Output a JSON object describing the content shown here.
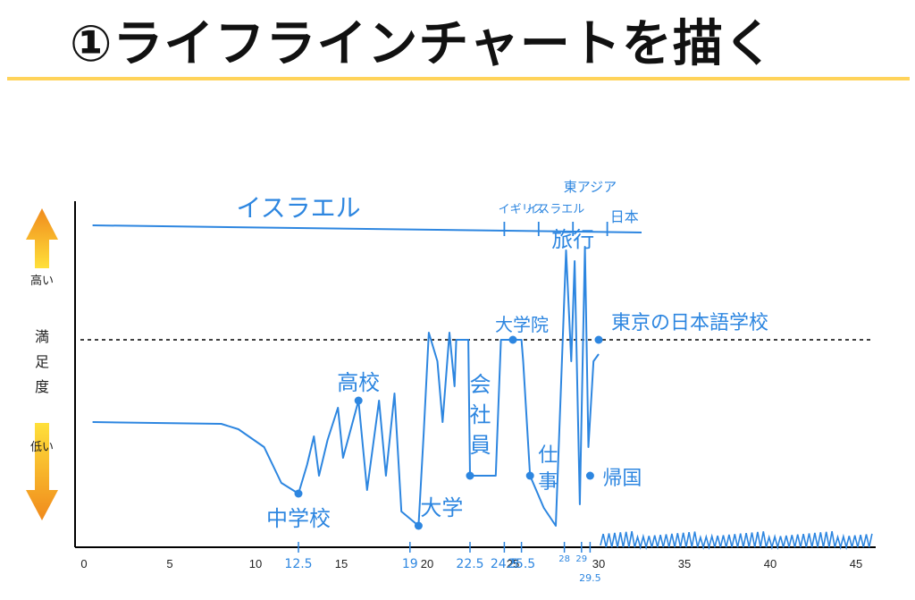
{
  "title": "①ライフラインチャートを描く",
  "colors": {
    "accent_line": "#ffd35a",
    "hand_blue": "#2d86e0",
    "arrow_orange": "#f08a1c",
    "arrow_yellow": "#ffe03a"
  },
  "chart_data": {
    "type": "line",
    "xlim": [
      0,
      45
    ],
    "x_ticks": [
      0,
      5,
      10,
      15,
      20,
      25,
      30,
      35,
      40,
      45
    ],
    "x_ticks_hand": [
      "12.5",
      "19",
      "22.5",
      "24.5",
      "25.5",
      "28",
      "29",
      "29.5"
    ],
    "y_labels": {
      "high": "高い",
      "mid": "満足度",
      "low": "低い"
    },
    "reference_level": 0.58,
    "series": [
      {
        "values": [
          {
            "x": 0.5,
            "y": 0.35
          },
          {
            "x": 8,
            "y": 0.345
          },
          {
            "x": 9,
            "y": 0.33
          },
          {
            "x": 10.5,
            "y": 0.28
          },
          {
            "x": 11.5,
            "y": 0.18
          },
          {
            "x": 12.5,
            "y": 0.15
          },
          {
            "x": 13,
            "y": 0.23
          },
          {
            "x": 13.4,
            "y": 0.31
          },
          {
            "x": 13.7,
            "y": 0.2
          },
          {
            "x": 14.2,
            "y": 0.3
          },
          {
            "x": 14.8,
            "y": 0.39
          },
          {
            "x": 15.1,
            "y": 0.25
          },
          {
            "x": 16,
            "y": 0.41
          },
          {
            "x": 16.5,
            "y": 0.16
          },
          {
            "x": 17.2,
            "y": 0.41
          },
          {
            "x": 17.6,
            "y": 0.2
          },
          {
            "x": 18.1,
            "y": 0.43
          },
          {
            "x": 18.5,
            "y": 0.1
          },
          {
            "x": 19,
            "y": 0.08
          },
          {
            "x": 19.5,
            "y": 0.06
          },
          {
            "x": 19.8,
            "y": 0.32
          },
          {
            "x": 20.1,
            "y": 0.6
          },
          {
            "x": 20.6,
            "y": 0.52
          },
          {
            "x": 20.9,
            "y": 0.35
          },
          {
            "x": 21.3,
            "y": 0.6
          },
          {
            "x": 21.6,
            "y": 0.45
          },
          {
            "x": 21.7,
            "y": 0.58
          },
          {
            "x": 22.4,
            "y": 0.58
          },
          {
            "x": 22.5,
            "y": 0.2
          },
          {
            "x": 24,
            "y": 0.2
          },
          {
            "x": 24.3,
            "y": 0.58
          },
          {
            "x": 24.5,
            "y": 0.58
          },
          {
            "x": 25.5,
            "y": 0.58
          },
          {
            "x": 25.6,
            "y": 0.52
          },
          {
            "x": 26,
            "y": 0.2
          },
          {
            "x": 26.8,
            "y": 0.11
          },
          {
            "x": 27.5,
            "y": 0.06
          },
          {
            "x": 28.1,
            "y": 0.83
          },
          {
            "x": 28.4,
            "y": 0.52
          },
          {
            "x": 28.6,
            "y": 0.8
          },
          {
            "x": 28.9,
            "y": 0.12
          },
          {
            "x": 29.2,
            "y": 0.84
          },
          {
            "x": 29.4,
            "y": 0.28
          },
          {
            "x": 29.7,
            "y": 0.52
          },
          {
            "x": 30,
            "y": 0.54
          }
        ]
      }
    ],
    "milestones": [
      {
        "x": 12.5,
        "y": 0.15,
        "label": "中学校"
      },
      {
        "x": 16,
        "y": 0.41,
        "label": "高校"
      },
      {
        "x": 19.5,
        "y": 0.06,
        "label": "大学"
      },
      {
        "x": 22.5,
        "y": 0.2,
        "label": "会社員"
      },
      {
        "x": 25,
        "y": 0.58,
        "label": "大学院"
      },
      {
        "x": 26,
        "y": 0.2,
        "label": "仕事"
      },
      {
        "x": 28.5,
        "y": 0.85,
        "label": "旅行"
      },
      {
        "x": 29.5,
        "y": 0.2,
        "label": "帰国"
      },
      {
        "x": 30,
        "y": 0.58,
        "label": "東京の日本語学校"
      }
    ],
    "location_timeline": [
      {
        "label": "イスラエル",
        "start": 0.5,
        "end": 24.5
      },
      {
        "label": "イギリス",
        "start": 24.5,
        "end": 26.5
      },
      {
        "label": "イスラエル",
        "start": 26.5,
        "end": 28.5
      },
      {
        "label": "東アジア",
        "start": 28.5,
        "end": 30.5
      },
      {
        "label": "日本",
        "start": 30.5,
        "end": 32.5
      }
    ]
  }
}
